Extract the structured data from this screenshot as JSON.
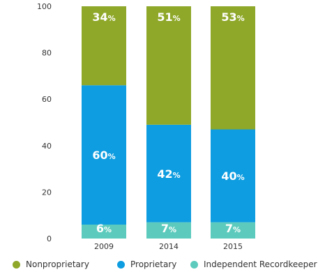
{
  "chart_data": {
    "type": "bar",
    "stacked": true,
    "categories": [
      "2009",
      "2014",
      "2015"
    ],
    "series": [
      {
        "name": "Independent Recordkeeper",
        "values": [
          6,
          7,
          7
        ],
        "labels": [
          "6",
          "7",
          "7"
        ],
        "color": "#5ccbbd"
      },
      {
        "name": "Proprietary",
        "values": [
          60,
          42,
          40
        ],
        "labels": [
          "60",
          "42",
          "40"
        ],
        "color": "#0e9de0"
      },
      {
        "name": "Nonproprietary",
        "values": [
          34,
          51,
          53
        ],
        "labels": [
          "34",
          "51",
          "53"
        ],
        "color": "#8fa82a"
      }
    ],
    "value_suffix": "%",
    "ylim": [
      0,
      100
    ],
    "yticks": [
      0,
      20,
      40,
      60,
      80,
      100
    ],
    "ytick_labels": [
      "0",
      "20",
      "40",
      "60",
      "80",
      "100"
    ],
    "grid": false,
    "legend_position": "bottom",
    "legend": [
      {
        "label": "Nonproprietary",
        "color": "#8fa82a"
      },
      {
        "label": "Proprietary",
        "color": "#0e9de0"
      },
      {
        "label": "Independent Recordkeeper",
        "color": "#5ccbbd"
      }
    ]
  }
}
